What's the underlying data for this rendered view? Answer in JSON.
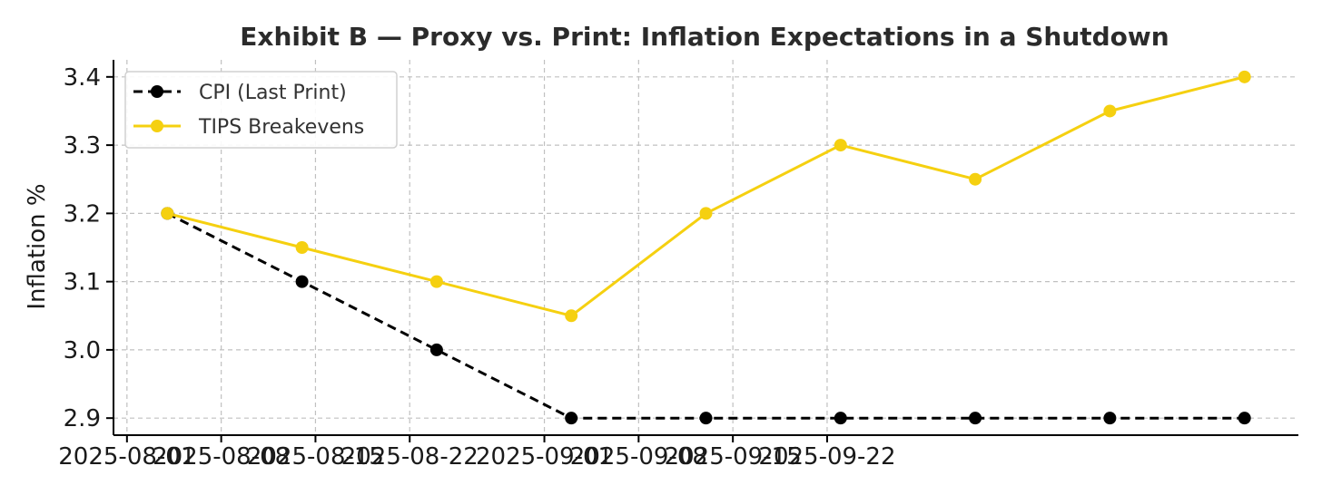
{
  "chart_data": {
    "type": "line",
    "title": "Exhibit B — Proxy vs. Print: Inflation Expectations in a Shutdown",
    "xlabel": "",
    "ylabel": "Inflation %",
    "x": [
      "2025-08-04",
      "2025-08-14",
      "2025-08-24",
      "2025-09-03",
      "2025-09-13",
      "2025-09-23",
      "2025-10-03",
      "2025-10-13",
      "2025-10-23"
    ],
    "xlim": [
      "2025-07-31",
      "2025-10-27"
    ],
    "xticks": [
      "2025-08-01",
      "2025-08-08",
      "2025-08-15",
      "2025-08-22",
      "2025-09-01",
      "2025-09-08",
      "2025-09-15",
      "2025-09-22"
    ],
    "ylim": [
      2.875,
      3.425
    ],
    "yticks": [
      "2.9",
      "3.0",
      "3.1",
      "3.2",
      "3.3",
      "3.4"
    ],
    "grid": true,
    "legend_position": "top-left",
    "series": [
      {
        "name": "CPI (Last Print)",
        "style": "dashed",
        "color": "#000000",
        "values": [
          3.2,
          3.1,
          3.0,
          2.9,
          2.9,
          2.9,
          2.9,
          2.9,
          2.9
        ]
      },
      {
        "name": "TIPS Breakevens",
        "style": "solid",
        "color": "#f5d010",
        "values": [
          3.2,
          3.15,
          3.1,
          3.05,
          3.2,
          3.3,
          3.25,
          3.35,
          3.4
        ]
      }
    ]
  }
}
